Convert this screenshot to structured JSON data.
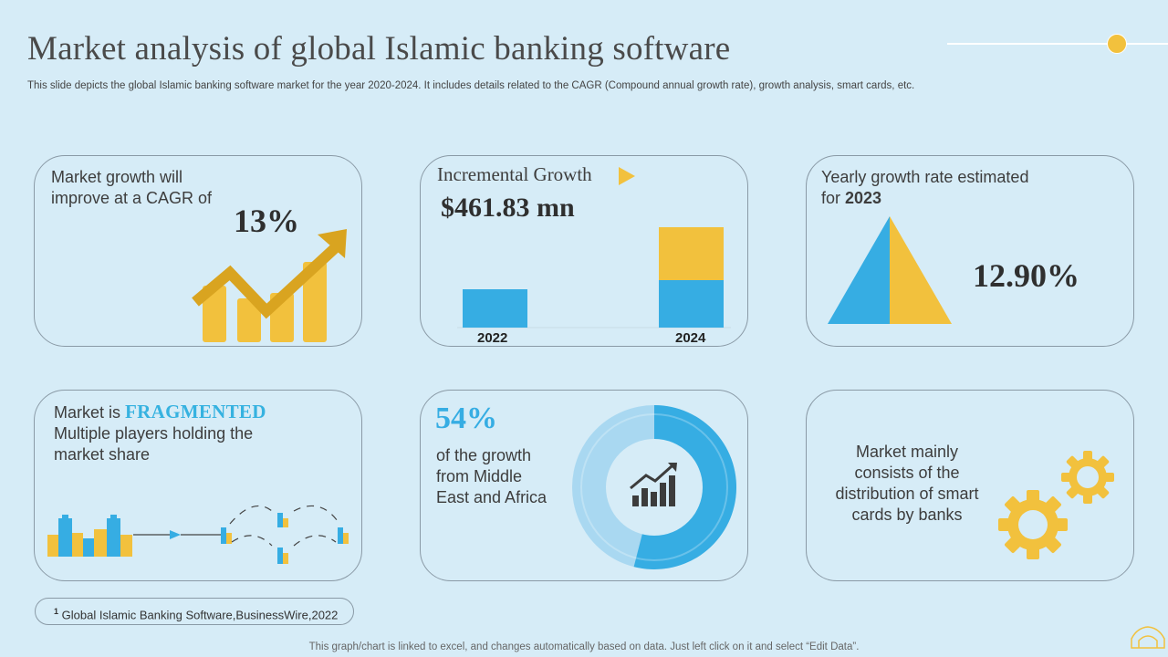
{
  "header": {
    "title": "Market analysis of global Islamic banking software",
    "subtitle": "This slide depicts the global Islamic banking software market for the year 2020-2024. It includes details related to the CAGR (Compound annual growth rate), growth analysis, smart cards, etc."
  },
  "cards": {
    "cagr": {
      "text_line1": "Market growth will",
      "text_line2": "improve at a CAGR of",
      "value": "13%"
    },
    "incremental": {
      "title": "Incremental Growth",
      "value": "$461.83 mn",
      "bar1_label": "2022",
      "bar2_label": "2024"
    },
    "yearly": {
      "text_line1": "Yearly growth rate estimated",
      "text_prefix": "for ",
      "text_year": "2023",
      "value": "12.90%"
    },
    "fragmented": {
      "prefix": "Market is ",
      "highlight": "FRAGMENTED",
      "line2": "Multiple players holding the",
      "line3": "market share"
    },
    "mea": {
      "value": "54%",
      "line1": "of the growth",
      "line2": "from Middle",
      "line3": "East and Africa",
      "share": 0.54
    },
    "smart_cards": {
      "line1": "Market mainly",
      "line2": "consists of the",
      "line3": "distribution of smart",
      "line4": "cards by banks"
    }
  },
  "source": {
    "sup": "1",
    "text": "Global Islamic Banking Software,BusinessWire,2022"
  },
  "footer": "This graph/chart is linked to excel,  and changes automatically based on data. Just left click on it and select “Edit Data”.",
  "colors": {
    "accent_yellow": "#f2c13d",
    "accent_blue": "#36ade3",
    "dark_yellow": "#d9a420",
    "background": "#d6ecf7"
  }
}
